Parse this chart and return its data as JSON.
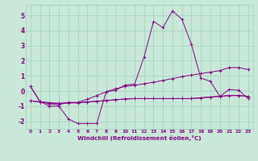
{
  "xlabel": "Windchill (Refroidissement éolien,°C)",
  "x_ticks": [
    0,
    1,
    2,
    3,
    4,
    5,
    6,
    7,
    8,
    9,
    10,
    11,
    12,
    13,
    14,
    15,
    16,
    17,
    18,
    19,
    20,
    21,
    22,
    23
  ],
  "ylim": [
    -2.5,
    5.7
  ],
  "yticks": [
    -2,
    -1,
    0,
    1,
    2,
    3,
    4,
    5
  ],
  "bg_color": "#c8e8d8",
  "line_color": "#880088",
  "grid_color": "#9fcfbf",
  "lines": [
    [
      0.3,
      -0.7,
      -1.0,
      -1.0,
      -1.85,
      -2.15,
      -2.15,
      -2.15,
      -0.05,
      0.05,
      0.4,
      0.45,
      2.25,
      4.6,
      4.2,
      5.3,
      4.75,
      3.1,
      0.85,
      0.65,
      -0.35,
      0.1,
      0.05,
      -0.5
    ],
    [
      0.3,
      -0.7,
      -0.85,
      -0.9,
      -0.75,
      -0.75,
      -0.55,
      -0.3,
      -0.05,
      0.15,
      0.3,
      0.38,
      0.48,
      0.58,
      0.7,
      0.82,
      0.95,
      1.05,
      1.15,
      1.25,
      1.35,
      1.55,
      1.55,
      1.42
    ],
    [
      -0.65,
      -0.72,
      -0.78,
      -0.82,
      -0.78,
      -0.78,
      -0.72,
      -0.68,
      -0.63,
      -0.58,
      -0.53,
      -0.5,
      -0.5,
      -0.5,
      -0.5,
      -0.5,
      -0.5,
      -0.5,
      -0.45,
      -0.4,
      -0.35,
      -0.3,
      -0.3,
      -0.35
    ],
    [
      -0.65,
      -0.72,
      -0.78,
      -0.82,
      -0.78,
      -0.78,
      -0.72,
      -0.68,
      -0.63,
      -0.58,
      -0.53,
      -0.5,
      -0.5,
      -0.5,
      -0.5,
      -0.5,
      -0.5,
      -0.5,
      -0.45,
      -0.4,
      -0.35,
      -0.3,
      -0.3,
      -0.35
    ]
  ]
}
